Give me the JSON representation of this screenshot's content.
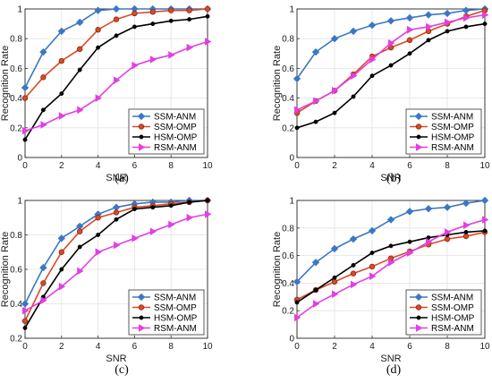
{
  "chart_data": [
    {
      "panel": "(a)",
      "type": "line",
      "xlabel": "SNR",
      "ylabel": "Recognition Rate",
      "xlim": [
        0,
        10
      ],
      "ylim": [
        0,
        1
      ],
      "xticks": [
        "0",
        "2",
        "4",
        "6",
        "8",
        "10"
      ],
      "yticks": [
        "0",
        "0.2",
        "0.4",
        "0.6",
        "0.8",
        "1"
      ],
      "grid": true,
      "legend_position": "bottom-right",
      "x": [
        0,
        1,
        2,
        3,
        4,
        5,
        6,
        7,
        8,
        9,
        10
      ],
      "series": [
        {
          "name": "SSM-ANM",
          "color": "#3a78c2",
          "marker": "diamond",
          "values": [
            0.47,
            0.71,
            0.85,
            0.91,
            0.99,
            1.0,
            1.0,
            1.0,
            1.0,
            1.0,
            1.0
          ]
        },
        {
          "name": "SSM-OMP",
          "color": "#d94a26",
          "marker": "circle",
          "values": [
            0.4,
            0.54,
            0.65,
            0.73,
            0.86,
            0.93,
            0.97,
            0.98,
            0.99,
            0.99,
            1.0
          ]
        },
        {
          "name": "HSM-OMP",
          "color": "#000000",
          "marker": "dot",
          "values": [
            0.12,
            0.32,
            0.43,
            0.59,
            0.74,
            0.82,
            0.88,
            0.9,
            0.92,
            0.93,
            0.95
          ]
        },
        {
          "name": "RSM-ANM",
          "color": "#e33ee3",
          "marker": "triangle-right",
          "values": [
            0.18,
            0.22,
            0.28,
            0.32,
            0.4,
            0.52,
            0.62,
            0.66,
            0.69,
            0.74,
            0.78
          ]
        }
      ]
    },
    {
      "panel": "(b)",
      "type": "line",
      "xlabel": "SNR",
      "ylabel": "Recognition Rate",
      "xlim": [
        0,
        10
      ],
      "ylim": [
        0,
        1
      ],
      "xticks": [
        "0",
        "2",
        "4",
        "6",
        "8",
        "10"
      ],
      "yticks": [
        "0",
        "0.2",
        "0.4",
        "0.6",
        "0.8",
        "1"
      ],
      "grid": true,
      "legend_position": "bottom-right",
      "x": [
        0,
        1,
        2,
        3,
        4,
        5,
        6,
        7,
        8,
        9,
        10
      ],
      "series": [
        {
          "name": "SSM-ANM",
          "color": "#3a78c2",
          "marker": "diamond",
          "values": [
            0.53,
            0.71,
            0.8,
            0.85,
            0.89,
            0.92,
            0.94,
            0.96,
            0.97,
            0.99,
            1.0
          ]
        },
        {
          "name": "SSM-OMP",
          "color": "#d94a26",
          "marker": "circle",
          "values": [
            0.3,
            0.38,
            0.45,
            0.56,
            0.68,
            0.74,
            0.79,
            0.85,
            0.9,
            0.95,
            0.99
          ]
        },
        {
          "name": "HSM-OMP",
          "color": "#000000",
          "marker": "dot",
          "values": [
            0.2,
            0.24,
            0.3,
            0.41,
            0.55,
            0.62,
            0.7,
            0.79,
            0.85,
            0.88,
            0.9
          ]
        },
        {
          "name": "RSM-ANM",
          "color": "#e33ee3",
          "marker": "triangle-right",
          "values": [
            0.32,
            0.38,
            0.45,
            0.55,
            0.66,
            0.77,
            0.86,
            0.88,
            0.91,
            0.94,
            0.96
          ]
        }
      ]
    },
    {
      "panel": "(c)",
      "type": "line",
      "xlabel": "SNR",
      "ylabel": "Recognition Rate",
      "xlim": [
        0,
        10
      ],
      "ylim": [
        0.2,
        1
      ],
      "xticks": [
        "0",
        "2",
        "4",
        "6",
        "8",
        "10"
      ],
      "yticks": [
        "0.2",
        "0.4",
        "0.6",
        "0.8",
        "1"
      ],
      "grid": true,
      "legend_position": "bottom-right",
      "x": [
        0,
        1,
        2,
        3,
        4,
        5,
        6,
        7,
        8,
        9,
        10
      ],
      "series": [
        {
          "name": "SSM-ANM",
          "color": "#3a78c2",
          "marker": "diamond",
          "values": [
            0.4,
            0.61,
            0.78,
            0.85,
            0.92,
            0.96,
            0.98,
            0.99,
            0.99,
            1.0,
            1.0
          ]
        },
        {
          "name": "SSM-OMP",
          "color": "#d94a26",
          "marker": "circle",
          "values": [
            0.3,
            0.52,
            0.7,
            0.82,
            0.9,
            0.93,
            0.96,
            0.97,
            0.98,
            0.99,
            1.0
          ]
        },
        {
          "name": "HSM-OMP",
          "color": "#000000",
          "marker": "dot",
          "values": [
            0.26,
            0.44,
            0.6,
            0.73,
            0.8,
            0.89,
            0.95,
            0.96,
            0.97,
            0.99,
            1.0
          ]
        },
        {
          "name": "RSM-ANM",
          "color": "#e33ee3",
          "marker": "triangle-right",
          "values": [
            0.36,
            0.42,
            0.5,
            0.59,
            0.7,
            0.74,
            0.78,
            0.82,
            0.86,
            0.9,
            0.92
          ]
        }
      ]
    },
    {
      "panel": "(d)",
      "type": "line",
      "xlabel": "SNR",
      "ylabel": "Recognition Rate",
      "xlim": [
        0,
        10
      ],
      "ylim": [
        0,
        1
      ],
      "xticks": [
        "0",
        "2",
        "4",
        "6",
        "8",
        "10"
      ],
      "yticks": [
        "0",
        "0.2",
        "0.4",
        "0.6",
        "0.8",
        "1"
      ],
      "grid": true,
      "legend_position": "bottom-right",
      "x": [
        0,
        1,
        2,
        3,
        4,
        5,
        6,
        7,
        8,
        9,
        10
      ],
      "series": [
        {
          "name": "SSM-ANM",
          "color": "#3a78c2",
          "marker": "diamond",
          "values": [
            0.41,
            0.55,
            0.65,
            0.72,
            0.78,
            0.86,
            0.92,
            0.94,
            0.95,
            0.98,
            1.0
          ]
        },
        {
          "name": "SSM-OMP",
          "color": "#d94a26",
          "marker": "circle",
          "values": [
            0.28,
            0.35,
            0.41,
            0.47,
            0.52,
            0.58,
            0.63,
            0.68,
            0.72,
            0.74,
            0.77
          ]
        },
        {
          "name": "HSM-OMP",
          "color": "#000000",
          "marker": "dot",
          "values": [
            0.26,
            0.35,
            0.44,
            0.53,
            0.62,
            0.67,
            0.7,
            0.73,
            0.75,
            0.77,
            0.78
          ]
        },
        {
          "name": "RSM-ANM",
          "color": "#e33ee3",
          "marker": "triangle-right",
          "values": [
            0.15,
            0.25,
            0.32,
            0.39,
            0.45,
            0.55,
            0.62,
            0.7,
            0.77,
            0.82,
            0.86
          ]
        }
      ]
    }
  ]
}
